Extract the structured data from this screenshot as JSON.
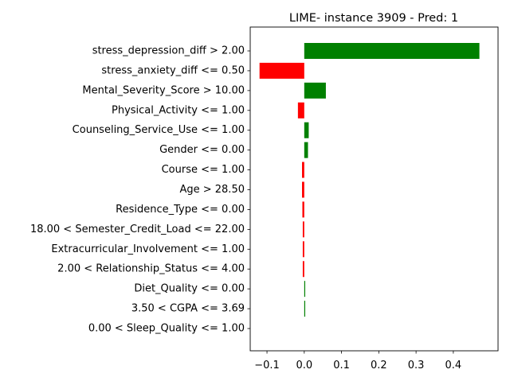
{
  "chart_data": {
    "type": "bar",
    "orientation": "horizontal",
    "title": "LIME- instance 3909 - Pred: 1",
    "xlabel": "",
    "ylabel": "",
    "xlim": [
      -0.145,
      0.52
    ],
    "xticks": [
      -0.1,
      0.0,
      0.1,
      0.2,
      0.3,
      0.4
    ],
    "xtick_labels": [
      "−0.1",
      "0.0",
      "0.1",
      "0.2",
      "0.3",
      "0.4"
    ],
    "grid": false,
    "legend": "none",
    "colors": {
      "positive": "#008000",
      "negative": "#ff0000"
    },
    "categories": [
      "stress_depression_diff > 2.00",
      "stress_anxiety_diff <= 0.50",
      "Mental_Severity_Score > 10.00",
      "Physical_Activity <= 1.00",
      "Counseling_Service_Use <= 1.00",
      "Gender <= 0.00",
      "Course <= 1.00",
      "Age > 28.50",
      "Residence_Type <= 0.00",
      "18.00 < Semester_Credit_Load <= 22.00",
      "Extracurricular_Involvement <= 1.00",
      "2.00 < Relationship_Status <= 4.00",
      "Diet_Quality <= 0.00",
      "3.50 < CGPA <= 3.69",
      "0.00 < Sleep_Quality <= 1.00"
    ],
    "values": [
      0.47,
      -0.12,
      0.058,
      -0.017,
      0.012,
      0.01,
      -0.006,
      -0.006,
      -0.005,
      -0.004,
      -0.004,
      -0.004,
      0.002,
      0.002,
      0.0
    ]
  }
}
